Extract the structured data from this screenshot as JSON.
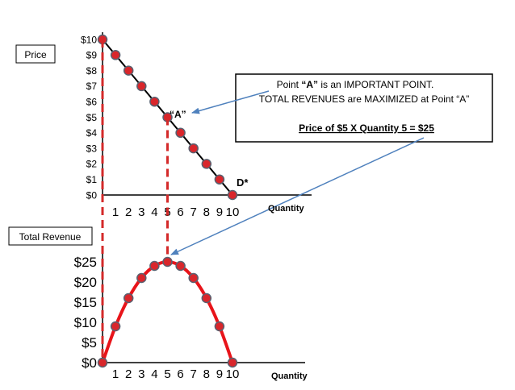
{
  "labels": {
    "price_box": "Price",
    "total_revenue_box": "Total Revenue",
    "point_a": "“A”",
    "demand": "D*",
    "quantity_top": "Quantity",
    "quantity_bottom": "Quantity"
  },
  "callout": {
    "line1_pre": "Point ",
    "line1_bold": "“A”",
    "line1_post": " is an IMPORTANT POINT.",
    "line2": "TOTAL REVENUES are MAXIMIZED at Point “A”",
    "line3": "Price of $5 X Quantity 5 = $25"
  },
  "colors": {
    "marker_fill": "#d9262b",
    "marker_stroke": "#5a6170",
    "curve": "#e8141a",
    "dashed": "#d42a2a",
    "arrow": "#4f81bd"
  },
  "chart_data": [
    {
      "type": "line",
      "ylabel": "Price",
      "xlabel": "Quantity",
      "x_ticks": [
        "1",
        "2",
        "3",
        "4",
        "5",
        "6",
        "7",
        "8",
        "9",
        "10"
      ],
      "y_ticks": [
        "$0",
        "$1",
        "$2",
        "$3",
        "$4",
        "$5",
        "$6",
        "$7",
        "$8",
        "$9",
        "$10"
      ],
      "xlim": [
        0,
        10
      ],
      "ylim": [
        0,
        10
      ],
      "x": [
        0,
        1,
        2,
        3,
        4,
        5,
        6,
        7,
        8,
        9,
        10
      ],
      "y": [
        10,
        9,
        8,
        7,
        6,
        5,
        4,
        3,
        2,
        1,
        0
      ]
    },
    {
      "type": "line",
      "ylabel": "Total Revenue",
      "xlabel": "Quantity",
      "x_ticks": [
        "1",
        "2",
        "3",
        "4",
        "5",
        "6",
        "7",
        "8",
        "9",
        "10"
      ],
      "y_ticks": [
        "$0",
        "$5",
        "$10",
        "$15",
        "$20",
        "$25"
      ],
      "xlim": [
        0,
        10
      ],
      "ylim": [
        0,
        25
      ],
      "x": [
        0,
        1,
        2,
        3,
        4,
        5,
        6,
        7,
        8,
        9,
        10
      ],
      "y": [
        0,
        9,
        16,
        21,
        24,
        25,
        24,
        21,
        16,
        9,
        0
      ]
    }
  ]
}
